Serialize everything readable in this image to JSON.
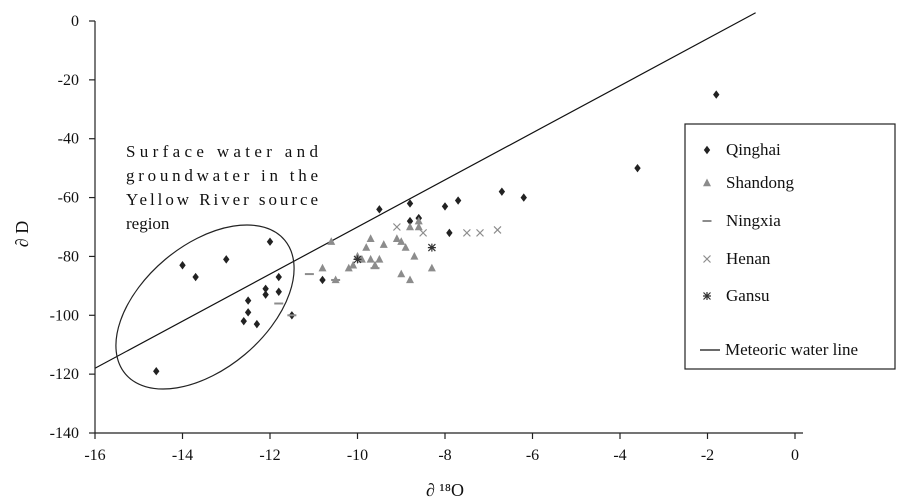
{
  "chart_data": {
    "type": "scatter",
    "xlabel": "∂ ¹⁸O",
    "ylabel": "∂ D",
    "xlim": [
      -16,
      0
    ],
    "ylim": [
      -140,
      0
    ],
    "xticks": [
      -16,
      -14,
      -12,
      -10,
      -8,
      -6,
      -4,
      -2,
      0
    ],
    "yticks": [
      0,
      -20,
      -40,
      -60,
      -80,
      -100,
      -120,
      -140
    ],
    "grid": false,
    "legend_position": "right",
    "annotation": {
      "lines": [
        "Surface water and",
        "groundwater in the",
        "Yellow River source",
        "region"
      ]
    },
    "series": [
      {
        "name": "Qinghai",
        "marker": "diamond",
        "color": "#222222",
        "points": [
          [
            -14.6,
            -119
          ],
          [
            -14.0,
            -83
          ],
          [
            -13.7,
            -87
          ],
          [
            -13.0,
            -81
          ],
          [
            -12.6,
            -102
          ],
          [
            -12.5,
            -99
          ],
          [
            -12.5,
            -95
          ],
          [
            -12.3,
            -103
          ],
          [
            -12.1,
            -93
          ],
          [
            -12.1,
            -91
          ],
          [
            -12.0,
            -75
          ],
          [
            -11.8,
            -92
          ],
          [
            -11.8,
            -87
          ],
          [
            -11.5,
            -100
          ],
          [
            -10.8,
            -88
          ],
          [
            -9.5,
            -64
          ],
          [
            -8.8,
            -68
          ],
          [
            -8.8,
            -62
          ],
          [
            -8.6,
            -67
          ],
          [
            -8.6,
            -67
          ],
          [
            -8.0,
            -63
          ],
          [
            -7.9,
            -72
          ],
          [
            -7.7,
            -61
          ],
          [
            -6.7,
            -58
          ],
          [
            -6.2,
            -60
          ],
          [
            -3.6,
            -50
          ],
          [
            -1.8,
            -25
          ]
        ]
      },
      {
        "name": "Shandong",
        "marker": "triangle",
        "color": "#8c8c8c",
        "points": [
          [
            -10.8,
            -84
          ],
          [
            -10.6,
            -75
          ],
          [
            -10.5,
            -88
          ],
          [
            -10.2,
            -84
          ],
          [
            -10.1,
            -83
          ],
          [
            -10.0,
            -80
          ],
          [
            -9.9,
            -81
          ],
          [
            -9.8,
            -77
          ],
          [
            -9.7,
            -81
          ],
          [
            -9.7,
            -74
          ],
          [
            -9.6,
            -83
          ],
          [
            -9.5,
            -81
          ],
          [
            -9.4,
            -76
          ],
          [
            -9.1,
            -74
          ],
          [
            -9.0,
            -75
          ],
          [
            -9.0,
            -86
          ],
          [
            -8.9,
            -77
          ],
          [
            -8.8,
            -88
          ],
          [
            -8.8,
            -70
          ],
          [
            -8.7,
            -80
          ],
          [
            -8.6,
            -70
          ],
          [
            -8.6,
            -68
          ],
          [
            -8.3,
            -84
          ]
        ]
      },
      {
        "name": "Ningxia",
        "marker": "dash",
        "color": "#8c8c8c",
        "points": [
          [
            -11.8,
            -96
          ],
          [
            -11.5,
            -100
          ],
          [
            -11.1,
            -86
          ],
          [
            -10.5,
            -88
          ],
          [
            -9.6,
            -84
          ]
        ]
      },
      {
        "name": "Henan",
        "marker": "x",
        "color": "#8c8c8c",
        "points": [
          [
            -9.1,
            -70
          ],
          [
            -8.5,
            -72
          ],
          [
            -7.5,
            -72
          ],
          [
            -7.2,
            -72
          ],
          [
            -6.8,
            -71
          ]
        ]
      },
      {
        "name": "Gansu",
        "marker": "asterisk",
        "color": "#333333",
        "points": [
          [
            -10.0,
            -81
          ],
          [
            -8.3,
            -77
          ]
        ]
      }
    ],
    "lines": [
      {
        "name": "Meteoric water line",
        "slope": 8,
        "intercept": 10,
        "x_range": [
          -16,
          -0.9
        ],
        "color": "#111111"
      }
    ]
  }
}
